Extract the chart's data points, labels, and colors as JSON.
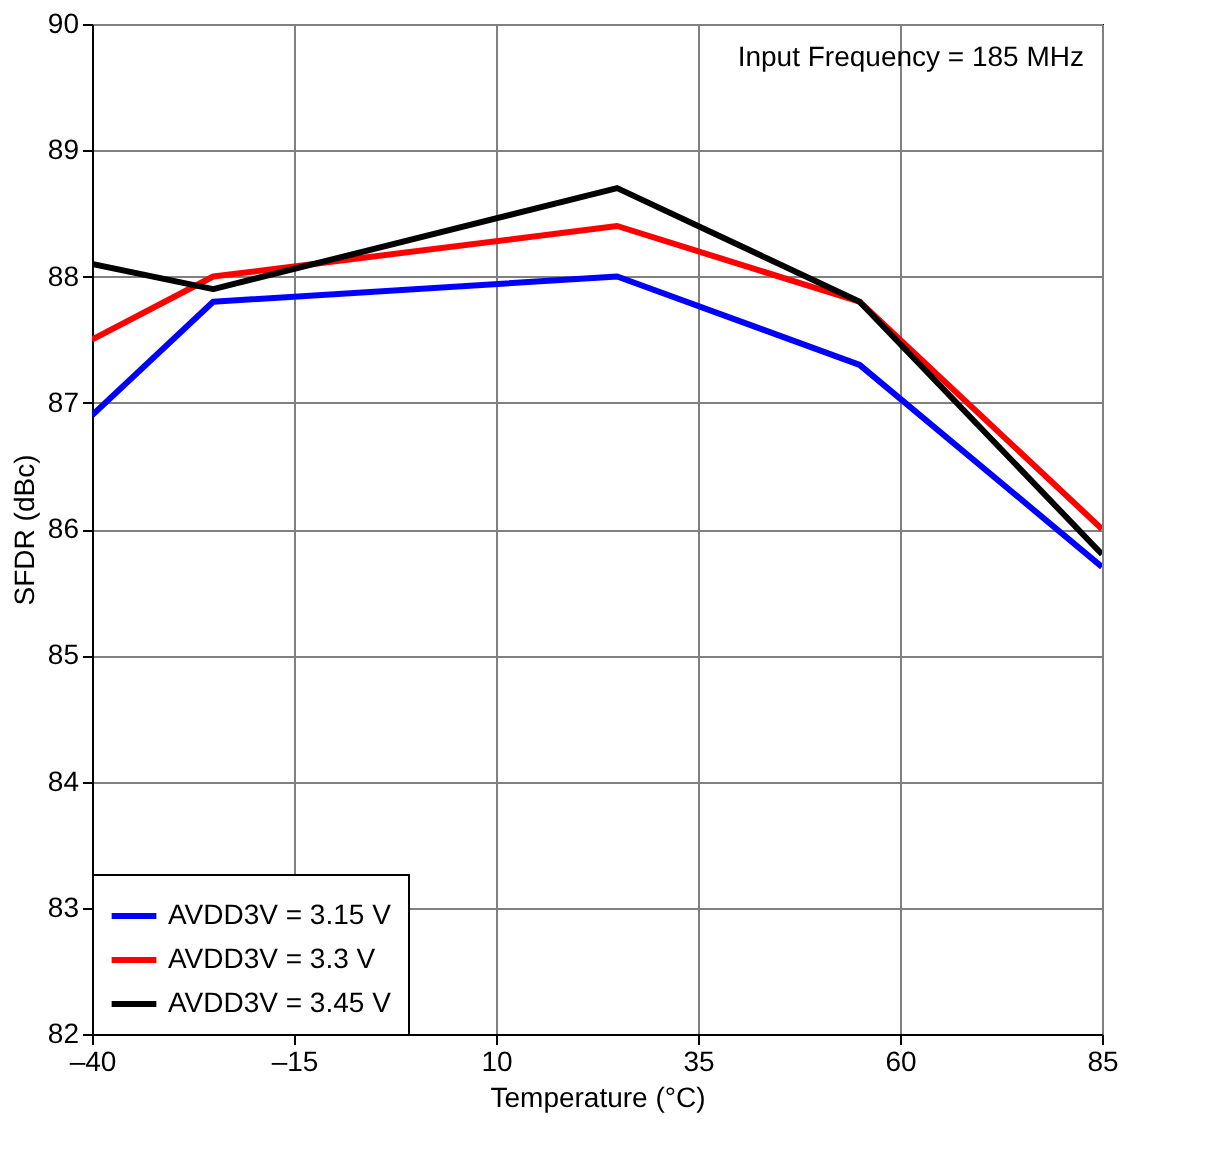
{
  "chart_data": {
    "type": "line",
    "xlabel": "Temperature (°C)",
    "ylabel": "SFDR (dBc)",
    "x": [
      -40,
      -25,
      25,
      55,
      85
    ],
    "series": [
      {
        "name": "AVDD3V = 3.15 V",
        "color": "#0000ff",
        "values": [
          86.9,
          87.8,
          88.0,
          87.3,
          85.7
        ]
      },
      {
        "name": "AVDD3V = 3.3 V",
        "color": "#ff0000",
        "values": [
          87.5,
          88.0,
          88.4,
          87.8,
          86.0
        ]
      },
      {
        "name": "AVDD3V = 3.45 V",
        "color": "#000000",
        "values": [
          88.1,
          87.9,
          88.7,
          87.8,
          85.8
        ]
      }
    ],
    "xlim": [
      -40,
      85
    ],
    "xticks": [
      {
        "value": -40,
        "label": "–40"
      },
      {
        "value": -15,
        "label": "–15"
      },
      10,
      35,
      60,
      85
    ],
    "ylim": [
      82,
      90
    ],
    "yticks": [
      82,
      83,
      84,
      85,
      86,
      87,
      88,
      89,
      90
    ],
    "annotations": [
      "Input Frequency = 185 MHz"
    ],
    "grid": true,
    "legend": "bottom left",
    "marker": "none",
    "line_style": "solid"
  }
}
